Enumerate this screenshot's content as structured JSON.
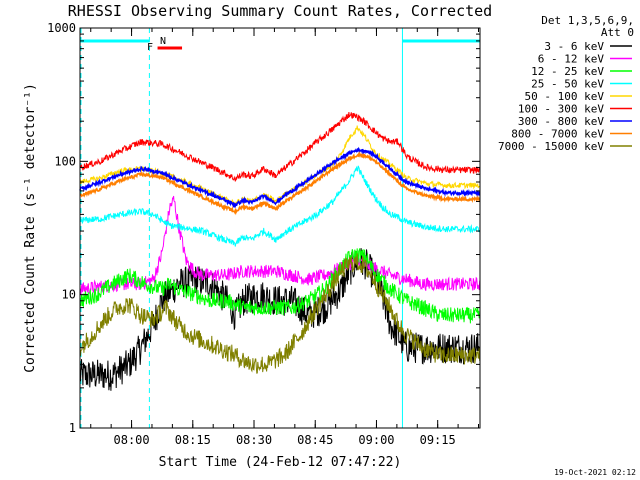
{
  "chart_data": {
    "type": "line",
    "title": "RHESSI Observing Summary Count Rates, Corrected",
    "xlabel": "Start Time (24-Feb-12 07:47:22)",
    "ylabel": "Corrected Count Rate (s⁻¹ detector⁻¹)",
    "yscale": "log",
    "ylim": [
      1,
      1000
    ],
    "xlim_minutes_after_start": [
      0,
      98
    ],
    "x_ticks": [
      "08:00",
      "08:15",
      "08:30",
      "08:45",
      "09:00",
      "09:15"
    ],
    "y_ticks": [
      "1",
      "10",
      "100",
      "1000"
    ],
    "legend_header": [
      "Det 1,3,5,6,9,",
      "Att 0"
    ],
    "legend_placement": "right",
    "timestamp": "19-Oct-2021 02:12",
    "markers": {
      "flag_f": "F",
      "flag_n": "N"
    },
    "series": [
      {
        "name": "3 - 6 keV",
        "color": "#000000",
        "x": [
          0,
          8,
          12,
          15,
          18,
          20,
          24,
          28,
          32,
          36,
          38,
          40,
          44,
          48,
          52,
          56,
          60,
          64,
          66,
          68,
          70,
          72,
          74,
          76,
          80,
          84,
          86,
          88,
          92,
          98
        ],
        "y": [
          2.5,
          2.5,
          3,
          4,
          6,
          9,
          12,
          13,
          12,
          9,
          7,
          9,
          10,
          9,
          9,
          7,
          8,
          11,
          15,
          18,
          17,
          14,
          10,
          6,
          4,
          4,
          4,
          4,
          4,
          4
        ]
      },
      {
        "name": "6 - 12 keV",
        "color": "#ff00ff",
        "x": [
          0,
          10,
          15,
          18,
          20,
          22,
          23,
          24,
          26,
          28,
          30,
          36,
          40,
          44,
          48,
          52,
          56,
          60,
          64,
          66,
          68,
          70,
          72,
          74,
          76,
          80,
          84,
          88,
          92,
          98
        ],
        "y": [
          11,
          12,
          12,
          13,
          20,
          45,
          52,
          35,
          18,
          15,
          14,
          14,
          15,
          15,
          15,
          14,
          13,
          14,
          16,
          17,
          18,
          17,
          16,
          15,
          14,
          13,
          12,
          12,
          12,
          12
        ]
      },
      {
        "name": "12 - 25 keV",
        "color": "#00ff00",
        "x": [
          0,
          4,
          8,
          12,
          16,
          20,
          22,
          24,
          28,
          32,
          36,
          40,
          44,
          48,
          52,
          56,
          60,
          64,
          66,
          68,
          70,
          72,
          76,
          80,
          84,
          88,
          92,
          98
        ],
        "y": [
          9,
          10,
          12,
          14,
          12,
          11,
          12,
          11,
          10,
          9,
          9,
          8,
          8,
          8,
          8,
          9,
          11,
          16,
          19,
          20,
          19,
          15,
          11,
          9,
          8,
          7,
          7,
          7
        ]
      },
      {
        "name": "25 - 50 keV",
        "color": "#00ffff",
        "x": [
          0,
          5,
          10,
          15,
          18,
          20,
          22,
          25,
          30,
          35,
          38,
          40,
          42,
          45,
          48,
          50,
          54,
          58,
          62,
          64,
          66,
          68,
          70,
          72,
          74,
          76,
          78,
          80,
          85,
          90,
          98
        ],
        "y": [
          36,
          37,
          40,
          42,
          40,
          36,
          33,
          32,
          30,
          26,
          24,
          27,
          26,
          30,
          26,
          29,
          34,
          40,
          50,
          60,
          72,
          90,
          70,
          55,
          46,
          40,
          38,
          35,
          32,
          31,
          31
        ]
      },
      {
        "name": "50 - 100 keV",
        "color": "#ffd700",
        "x": [
          0,
          5,
          10,
          15,
          20,
          25,
          30,
          35,
          38,
          40,
          42,
          45,
          48,
          50,
          54,
          58,
          62,
          64,
          66,
          68,
          70,
          72,
          74,
          76,
          78,
          80,
          85,
          90,
          98
        ],
        "y": [
          70,
          75,
          85,
          88,
          82,
          72,
          62,
          53,
          48,
          52,
          50,
          56,
          50,
          56,
          66,
          80,
          95,
          115,
          150,
          180,
          150,
          120,
          105,
          95,
          85,
          75,
          68,
          66,
          66
        ]
      },
      {
        "name": "100 - 300 keV",
        "color": "#ff0000",
        "x": [
          0,
          5,
          10,
          15,
          20,
          25,
          30,
          35,
          38,
          40,
          42,
          45,
          48,
          50,
          54,
          58,
          62,
          64,
          66,
          68,
          70,
          72,
          74,
          76,
          78,
          80,
          82,
          85,
          90,
          98
        ],
        "y": [
          90,
          100,
          120,
          140,
          135,
          115,
          97,
          83,
          74,
          80,
          77,
          88,
          78,
          88,
          110,
          140,
          175,
          200,
          225,
          215,
          195,
          170,
          150,
          140,
          140,
          110,
          100,
          90,
          86,
          86
        ]
      },
      {
        "name": "300 - 800 keV",
        "color": "#0000ff",
        "x": [
          0,
          5,
          10,
          15,
          20,
          25,
          30,
          35,
          38,
          40,
          42,
          45,
          48,
          50,
          54,
          58,
          62,
          66,
          68,
          70,
          72,
          74,
          76,
          78,
          80,
          85,
          90,
          98
        ],
        "y": [
          62,
          70,
          80,
          88,
          82,
          70,
          60,
          52,
          47,
          51,
          49,
          55,
          49,
          55,
          66,
          80,
          98,
          115,
          122,
          120,
          112,
          100,
          88,
          78,
          70,
          62,
          58,
          58
        ]
      },
      {
        "name": "800 - 7000 keV",
        "color": "#ff7f00",
        "x": [
          0,
          5,
          10,
          15,
          20,
          25,
          30,
          35,
          38,
          40,
          42,
          45,
          48,
          50,
          54,
          58,
          62,
          66,
          68,
          70,
          72,
          74,
          76,
          78,
          80,
          85,
          90,
          98
        ],
        "y": [
          55,
          62,
          72,
          80,
          76,
          64,
          54,
          46,
          42,
          46,
          44,
          49,
          44,
          49,
          59,
          72,
          88,
          105,
          112,
          110,
          102,
          90,
          80,
          70,
          62,
          55,
          52,
          52
        ]
      },
      {
        "name": "7000 - 15000 keV",
        "color": "#808000",
        "x": [
          0,
          3,
          6,
          9,
          12,
          15,
          18,
          21,
          24,
          27,
          30,
          34,
          38,
          42,
          46,
          50,
          54,
          58,
          62,
          64,
          66,
          68,
          70,
          72,
          74,
          76,
          78,
          80,
          84,
          88,
          92,
          98
        ],
        "y": [
          4,
          5,
          6.5,
          8,
          8.5,
          7,
          6.5,
          8,
          6,
          5,
          4.5,
          4,
          3.5,
          3,
          3,
          3.5,
          5,
          8,
          12,
          15,
          17,
          17.5,
          16,
          13,
          10,
          8,
          6,
          5,
          4,
          3.5,
          3.5,
          3.5
        ]
      }
    ],
    "annotations": {
      "cyan_dashed_vlines_minutes": [
        0,
        17,
        98
      ],
      "cyan_solid_vline_minutes": 79,
      "cyan_bars_minutes": [
        [
          0,
          17
        ],
        [
          79,
          98
        ]
      ],
      "red_bar_minutes": [
        19,
        25
      ]
    }
  }
}
